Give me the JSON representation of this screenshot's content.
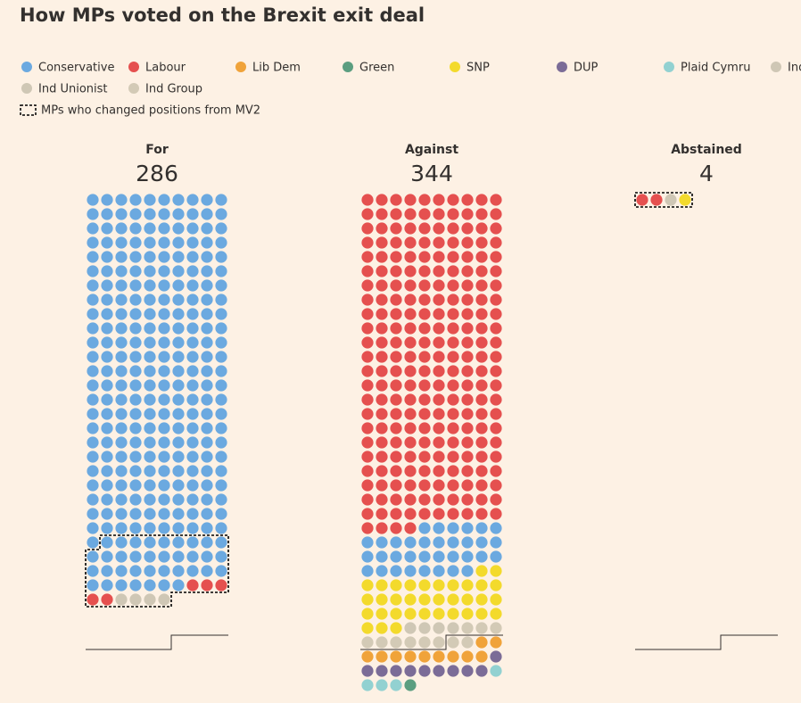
{
  "chart_data": {
    "type": "waffle",
    "title": "How MPs voted on the Brexit exit deal",
    "changed_label": "MPs who changed positions from MV2",
    "groups": [
      "For",
      "Against",
      "Abstained"
    ],
    "totals": [
      286,
      344,
      4
    ],
    "changed": [
      45,
      0,
      4
    ],
    "series": [
      {
        "name": "Conservative",
        "color": "#6ba9e0",
        "values": [
          277,
          34,
          0
        ]
      },
      {
        "name": "Labour",
        "color": "#e5504f",
        "values": [
          5,
          234,
          2
        ]
      },
      {
        "name": "Lib Dem",
        "color": "#f0a33a",
        "values": [
          0,
          11,
          0
        ]
      },
      {
        "name": "Green",
        "color": "#5b9e80",
        "values": [
          0,
          1,
          0
        ]
      },
      {
        "name": "SNP",
        "color": "#f3da2c",
        "values": [
          0,
          35,
          1
        ]
      },
      {
        "name": "DUP",
        "color": "#7b6c97",
        "values": [
          0,
          10,
          0
        ]
      },
      {
        "name": "Plaid Cymru",
        "color": "#92d1d1",
        "values": [
          0,
          4,
          0
        ]
      },
      {
        "name": "Ind",
        "color": "#cfc7b5",
        "values": [
          3,
          4,
          1
        ]
      },
      {
        "name": "Ind Unionist",
        "color": "#cfc7b5",
        "values": [
          1,
          0,
          0
        ]
      },
      {
        "name": "Ind Group",
        "color": "#d3cab6",
        "values": [
          0,
          11,
          0
        ]
      }
    ]
  }
}
